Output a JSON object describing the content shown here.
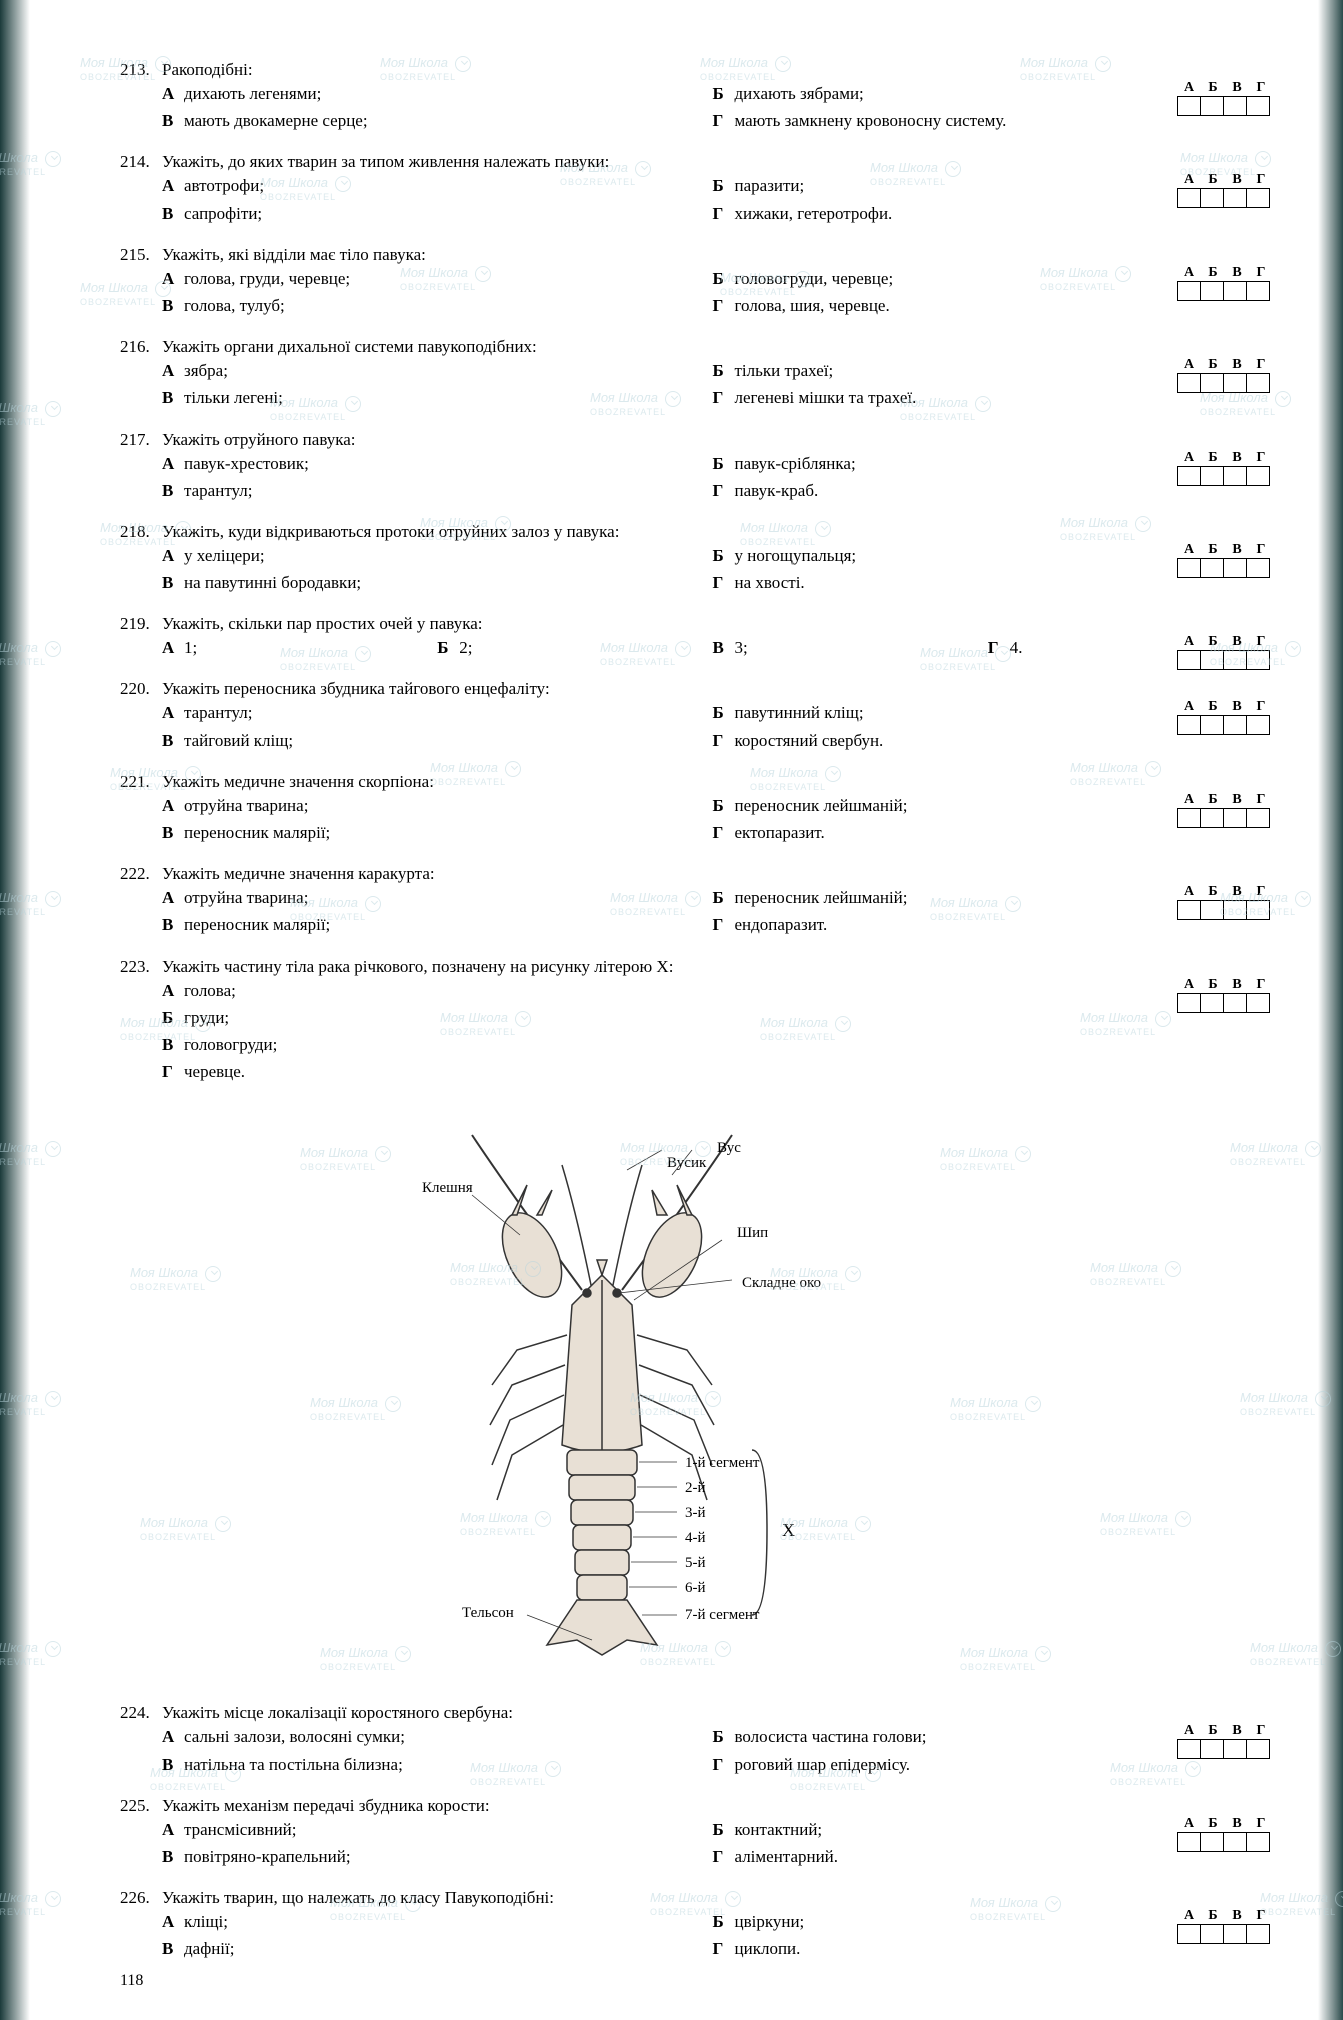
{
  "page_number": "118",
  "watermark": {
    "brand": "Моя Школа",
    "sub": "OBOZREVATEL"
  },
  "answer_labels": [
    "А",
    "Б",
    "В",
    "Г"
  ],
  "questions": [
    {
      "num": "213.",
      "text": "Ракоподібні:",
      "options": {
        "a": "дихають легенями;",
        "b": "дихають зябрами;",
        "v": "мають двокамерне серце;",
        "g": "мають замкнену кровоносну систему."
      }
    },
    {
      "num": "214.",
      "text": "Укажіть, до яких тварин за типом живлення належать павуки:",
      "options": {
        "a": "автотрофи;",
        "b": "паразити;",
        "v": "сапрофіти;",
        "g": "хижаки, гетеротрофи."
      }
    },
    {
      "num": "215.",
      "text": "Укажіть, які відділи має тіло павука:",
      "options": {
        "a": "голова, груди, черевце;",
        "b": "головогруди, черевце;",
        "v": "голова, тулуб;",
        "g": "голова, шия, черевце."
      }
    },
    {
      "num": "216.",
      "text": "Укажіть органи дихальної системи павукоподібних:",
      "options": {
        "a": "зябра;",
        "b": "тільки трахеї;",
        "v": "тільки легені;",
        "g": "легеневі мішки та трахеї."
      }
    },
    {
      "num": "217.",
      "text": "Укажіть отруйного павука:",
      "options": {
        "a": "павук-хрестовик;",
        "b": "павук-сріблянка;",
        "v": "тарантул;",
        "g": "павук-краб."
      }
    },
    {
      "num": "218.",
      "text": "Укажіть, куди відкриваються протоки отруйних залоз у павука:",
      "options": {
        "a": "у хеліцери;",
        "b": "у ногощупальця;",
        "v": "на павутинні бородавки;",
        "g": "на хвості."
      }
    },
    {
      "num": "219.",
      "text": "Укажіть, скільки пар простих очей у павука:",
      "options_inline": {
        "a": "1;",
        "b": "2;",
        "v": "3;",
        "g": "4."
      }
    },
    {
      "num": "220.",
      "text": "Укажіть переносника збудника тайгового енцефаліту:",
      "options": {
        "a": "тарантул;",
        "b": "павутинний кліщ;",
        "v": "тайговий кліщ;",
        "g": "коростяний свербун."
      }
    },
    {
      "num": "221.",
      "text": "Укажіть медичне значення скорпіона:",
      "options": {
        "a": "отруйна тварина;",
        "b": "переносник лейшманій;",
        "v": "переносник малярії;",
        "g": "ектопаразит."
      }
    },
    {
      "num": "222.",
      "text": "Укажіть медичне значення каракурта:",
      "options": {
        "a": "отруйна тварина;",
        "b": "переносник лейшманій;",
        "v": "переносник малярії;",
        "g": "ендопаразит."
      }
    },
    {
      "num": "223.",
      "text": "Укажіть частину тіла рака річкового, позначену на рисунку літерою X:",
      "options_vertical": {
        "a": "голова;",
        "b": "груди;",
        "v": "головогруди;",
        "g": "черевце."
      },
      "diagram_labels": {
        "vus": "Вус",
        "vusyk": "Вусик",
        "kleshnia": "Клешня",
        "shyp": "Шип",
        "oko": "Складне око",
        "x": "X",
        "seg1": "1-й сегмент",
        "seg2": "2-й",
        "seg3": "3-й",
        "seg4": "4-й",
        "seg5": "5-й",
        "seg6": "6-й",
        "seg7": "7-й сегмент",
        "telson": "Тельсон"
      }
    },
    {
      "num": "224.",
      "text": "Укажіть місце локалізації коростяного свербуна:",
      "options": {
        "a": "сальні залози, волосяні сумки;",
        "b": "волосиста частина голови;",
        "v": "натільна та постільна білизна;",
        "g": "роговий шар епідермісу."
      }
    },
    {
      "num": "225.",
      "text": "Укажіть механізм передачі збудника корости:",
      "options": {
        "a": "трансмісивний;",
        "b": "контактний;",
        "v": "повітряно-крапельний;",
        "g": "аліментарний."
      }
    },
    {
      "num": "226.",
      "text": "Укажіть тварин, що належать до класу Павукоподібні:",
      "options": {
        "a": "кліщі;",
        "b": "цвіркуни;",
        "v": "дафнії;",
        "g": "циклопи."
      }
    }
  ]
}
